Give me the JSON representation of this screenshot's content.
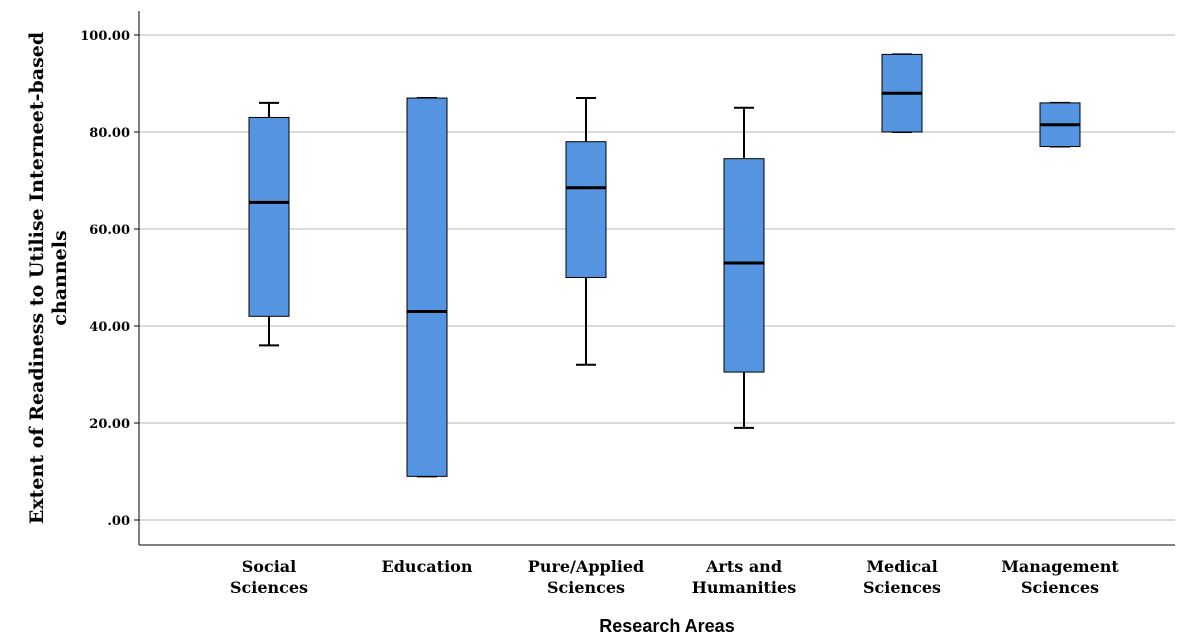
{
  "chart_data": {
    "type": "box",
    "xlabel": "Research Areas",
    "ylabel": "Extent of Readiness to Utilise Interneet-based channels",
    "ylim": [
      -5,
      106
    ],
    "yticks": [
      {
        "value": 0,
        "label": ".00"
      },
      {
        "value": 20,
        "label": "20.00"
      },
      {
        "value": 40,
        "label": "40.00"
      },
      {
        "value": 60,
        "label": "60.00"
      },
      {
        "value": 80,
        "label": "80.00"
      },
      {
        "value": 100,
        "label": "100.00"
      }
    ],
    "grid": true,
    "box_color": "#5594e0",
    "categories": [
      {
        "lines": [
          "Social",
          "Sciences"
        ],
        "min": 36,
        "q1": 42,
        "median": 65.5,
        "q3": 83,
        "max": 86
      },
      {
        "lines": [
          "Education"
        ],
        "min": 9,
        "q1": 9,
        "median": 43,
        "q3": 87,
        "max": 87
      },
      {
        "lines": [
          "Pure/Applied",
          "Sciences"
        ],
        "min": 32,
        "q1": 50,
        "median": 68.5,
        "q3": 78,
        "max": 87
      },
      {
        "lines": [
          "Arts and",
          "Humanities"
        ],
        "min": 19,
        "q1": 30.5,
        "median": 53,
        "q3": 74.5,
        "max": 85
      },
      {
        "lines": [
          "Medical",
          "Sciences"
        ],
        "min": 80,
        "q1": 80,
        "median": 88,
        "q3": 96,
        "max": 96
      },
      {
        "lines": [
          "Management",
          "Sciences"
        ],
        "min": 77,
        "q1": 77,
        "median": 81.5,
        "q3": 86,
        "max": 86
      }
    ]
  }
}
